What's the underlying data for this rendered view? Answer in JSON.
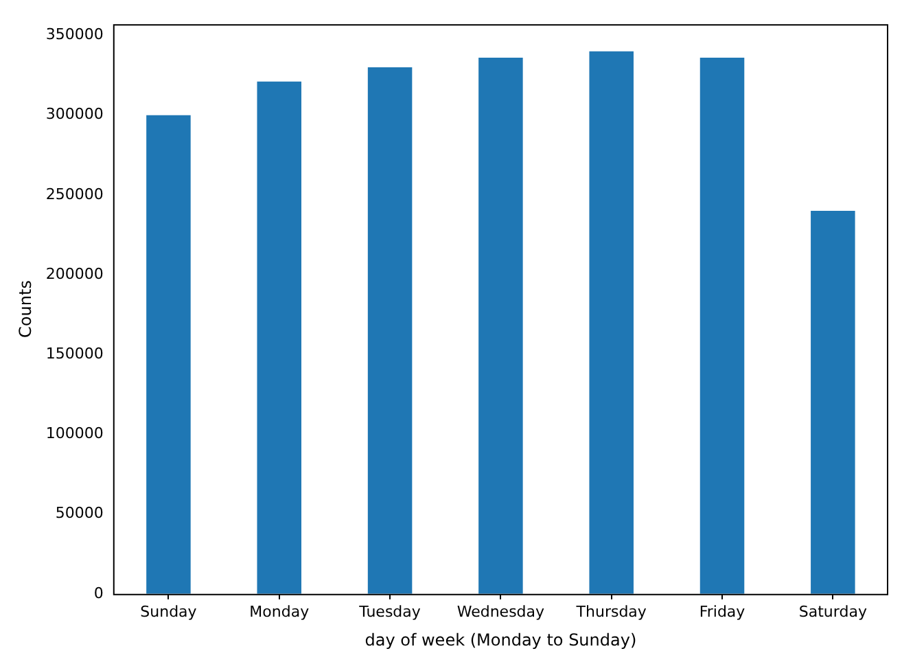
{
  "chart_data": {
    "type": "bar",
    "xlabel": "day of week (Monday to Sunday)",
    "ylabel": "Counts",
    "categories": [
      "Sunday",
      "Monday",
      "Tuesday",
      "Wednesday",
      "Thursday",
      "Friday",
      "Saturday"
    ],
    "values": [
      300000,
      321000,
      330000,
      336000,
      340000,
      336000,
      240000
    ],
    "color": "#1f77b4",
    "ylim": [
      0,
      357000
    ],
    "yticks": [
      0,
      50000,
      100000,
      150000,
      200000,
      250000,
      300000,
      350000
    ],
    "grid": false,
    "legend": false
  }
}
